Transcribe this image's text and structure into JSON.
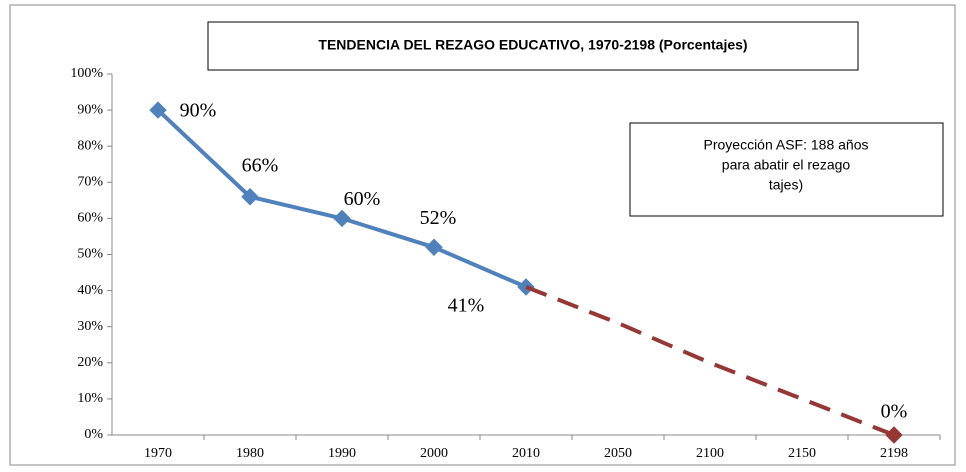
{
  "chart_data": {
    "type": "line",
    "title": "TENDENCIA DEL REZAGO EDUCATIVO, 1970-2198   (Porcentajes)",
    "annotation": [
      "Proyección ASF: 188 años",
      "para abatir el rezago",
      "tajes)"
    ],
    "categories": [
      "1970",
      "1980",
      "1990",
      "2000",
      "2010",
      "2050",
      "2100",
      "2150",
      "2198"
    ],
    "series": [
      {
        "color": "#4f81bd",
        "dashed": false,
        "values": [
          90,
          66,
          60,
          52,
          41,
          null,
          null,
          null,
          null
        ],
        "value_labels": [
          "90%",
          "66%",
          "60%",
          "52%",
          "41%",
          null,
          null,
          null,
          null
        ]
      },
      {
        "color": "#953735",
        "dashed": true,
        "values": [
          null,
          null,
          null,
          null,
          41,
          31,
          20,
          10,
          0
        ],
        "value_labels": [
          null,
          null,
          null,
          null,
          null,
          null,
          null,
          null,
          "0%"
        ]
      }
    ],
    "ylim": [
      0,
      100
    ],
    "yticks": [
      {
        "value": 0,
        "label": "0%"
      },
      {
        "value": 10,
        "label": "10%"
      },
      {
        "value": 20,
        "label": "20%"
      },
      {
        "value": 30,
        "label": "30%"
      },
      {
        "value": 40,
        "label": "40%"
      },
      {
        "value": 50,
        "label": "50%"
      },
      {
        "value": 60,
        "label": "60%"
      },
      {
        "value": 70,
        "label": "70%"
      },
      {
        "value": 80,
        "label": "80%"
      },
      {
        "value": 90,
        "label": "90%"
      },
      {
        "value": 100,
        "label": "100%"
      }
    ],
    "grid": false
  }
}
